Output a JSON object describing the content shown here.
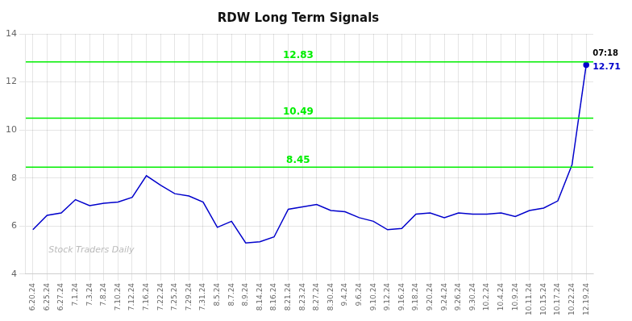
{
  "chart_data": {
    "type": "line",
    "title": "RDW Long Term Signals",
    "categories": [
      "6.20.24",
      "6.25.24",
      "6.27.24",
      "7.1.24",
      "7.3.24",
      "7.8.24",
      "7.10.24",
      "7.12.24",
      "7.16.24",
      "7.22.24",
      "7.25.24",
      "7.29.24",
      "7.31.24",
      "8.5.24",
      "8.7.24",
      "8.9.24",
      "8.14.24",
      "8.16.24",
      "8.21.24",
      "8.23.24",
      "8.27.24",
      "8.30.24",
      "9.4.24",
      "9.6.24",
      "9.10.24",
      "9.12.24",
      "9.16.24",
      "9.18.24",
      "9.20.24",
      "9.24.24",
      "9.26.24",
      "9.30.24",
      "10.2.24",
      "10.4.24",
      "10.9.24",
      "10.11.24",
      "10.15.24",
      "10.17.24",
      "10.22.24",
      "12.19.24"
    ],
    "values": [
      5.85,
      6.45,
      6.55,
      7.1,
      6.85,
      6.95,
      7.0,
      7.2,
      8.1,
      7.7,
      7.35,
      7.25,
      7.0,
      5.95,
      6.2,
      5.3,
      5.35,
      5.55,
      6.7,
      6.8,
      6.9,
      6.65,
      6.6,
      6.35,
      6.2,
      5.85,
      5.9,
      6.5,
      6.55,
      6.35,
      6.55,
      6.5,
      6.5,
      6.55,
      6.4,
      6.65,
      6.75,
      7.05,
      8.55,
      12.71
    ],
    "color": "#0000cc",
    "ylim": [
      4,
      14
    ],
    "yticks": [
      4,
      6,
      8,
      10,
      12,
      14
    ],
    "grid": true,
    "reference_lines": [
      {
        "value": 8.45,
        "label": "8.45",
        "color": "#00ee00"
      },
      {
        "value": 10.49,
        "label": "10.49",
        "color": "#00ee00"
      },
      {
        "value": 12.83,
        "label": "12.83",
        "color": "#00ee00"
      }
    ],
    "watermark": "Stock Traders Daily",
    "annotations": [
      {
        "text": "07:18",
        "category": "12.19.24",
        "value": 12.71
      },
      {
        "text": "12.71",
        "category": "12.19.24",
        "value": 12.71,
        "color": "#0000cc"
      }
    ]
  }
}
